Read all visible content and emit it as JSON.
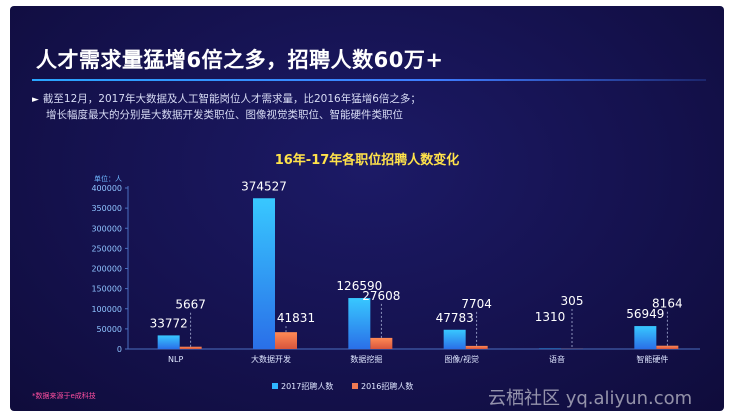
{
  "slide": {
    "title": "人才需求量猛增6倍之多，招聘人数60万+",
    "bullet_line1": "截至12月，2017年大数据及人工智能岗位人才需求量，比2016年猛增6倍之多；",
    "bullet_line2": "增长幅度最大的分别是大数据开发类职位、图像视觉类职位、智能硬件类职位",
    "source": "*数据来源于e成科技",
    "watermark": "云栖社区 yq.aliyun.com"
  },
  "chart_data": {
    "type": "bar",
    "title": "16年-17年各职位招聘人数变化",
    "ylabel": "单位：人",
    "ylim": [
      0,
      400000
    ],
    "yticks": [
      0,
      50000,
      100000,
      150000,
      200000,
      250000,
      300000,
      350000,
      400000
    ],
    "categories": [
      "NLP",
      "大数据开发",
      "数据挖掘",
      "图像/视觉",
      "语音",
      "智能硬件"
    ],
    "series": [
      {
        "name": "2017招聘人数",
        "values": [
          33772,
          374527,
          126590,
          47783,
          1310,
          56949
        ],
        "color": "#2fb6ff"
      },
      {
        "name": "2016招聘人数",
        "values": [
          5667,
          41831,
          27608,
          7704,
          305,
          8164
        ],
        "color": "#f07a52"
      }
    ],
    "legend": "bottom-center",
    "grid": false
  }
}
